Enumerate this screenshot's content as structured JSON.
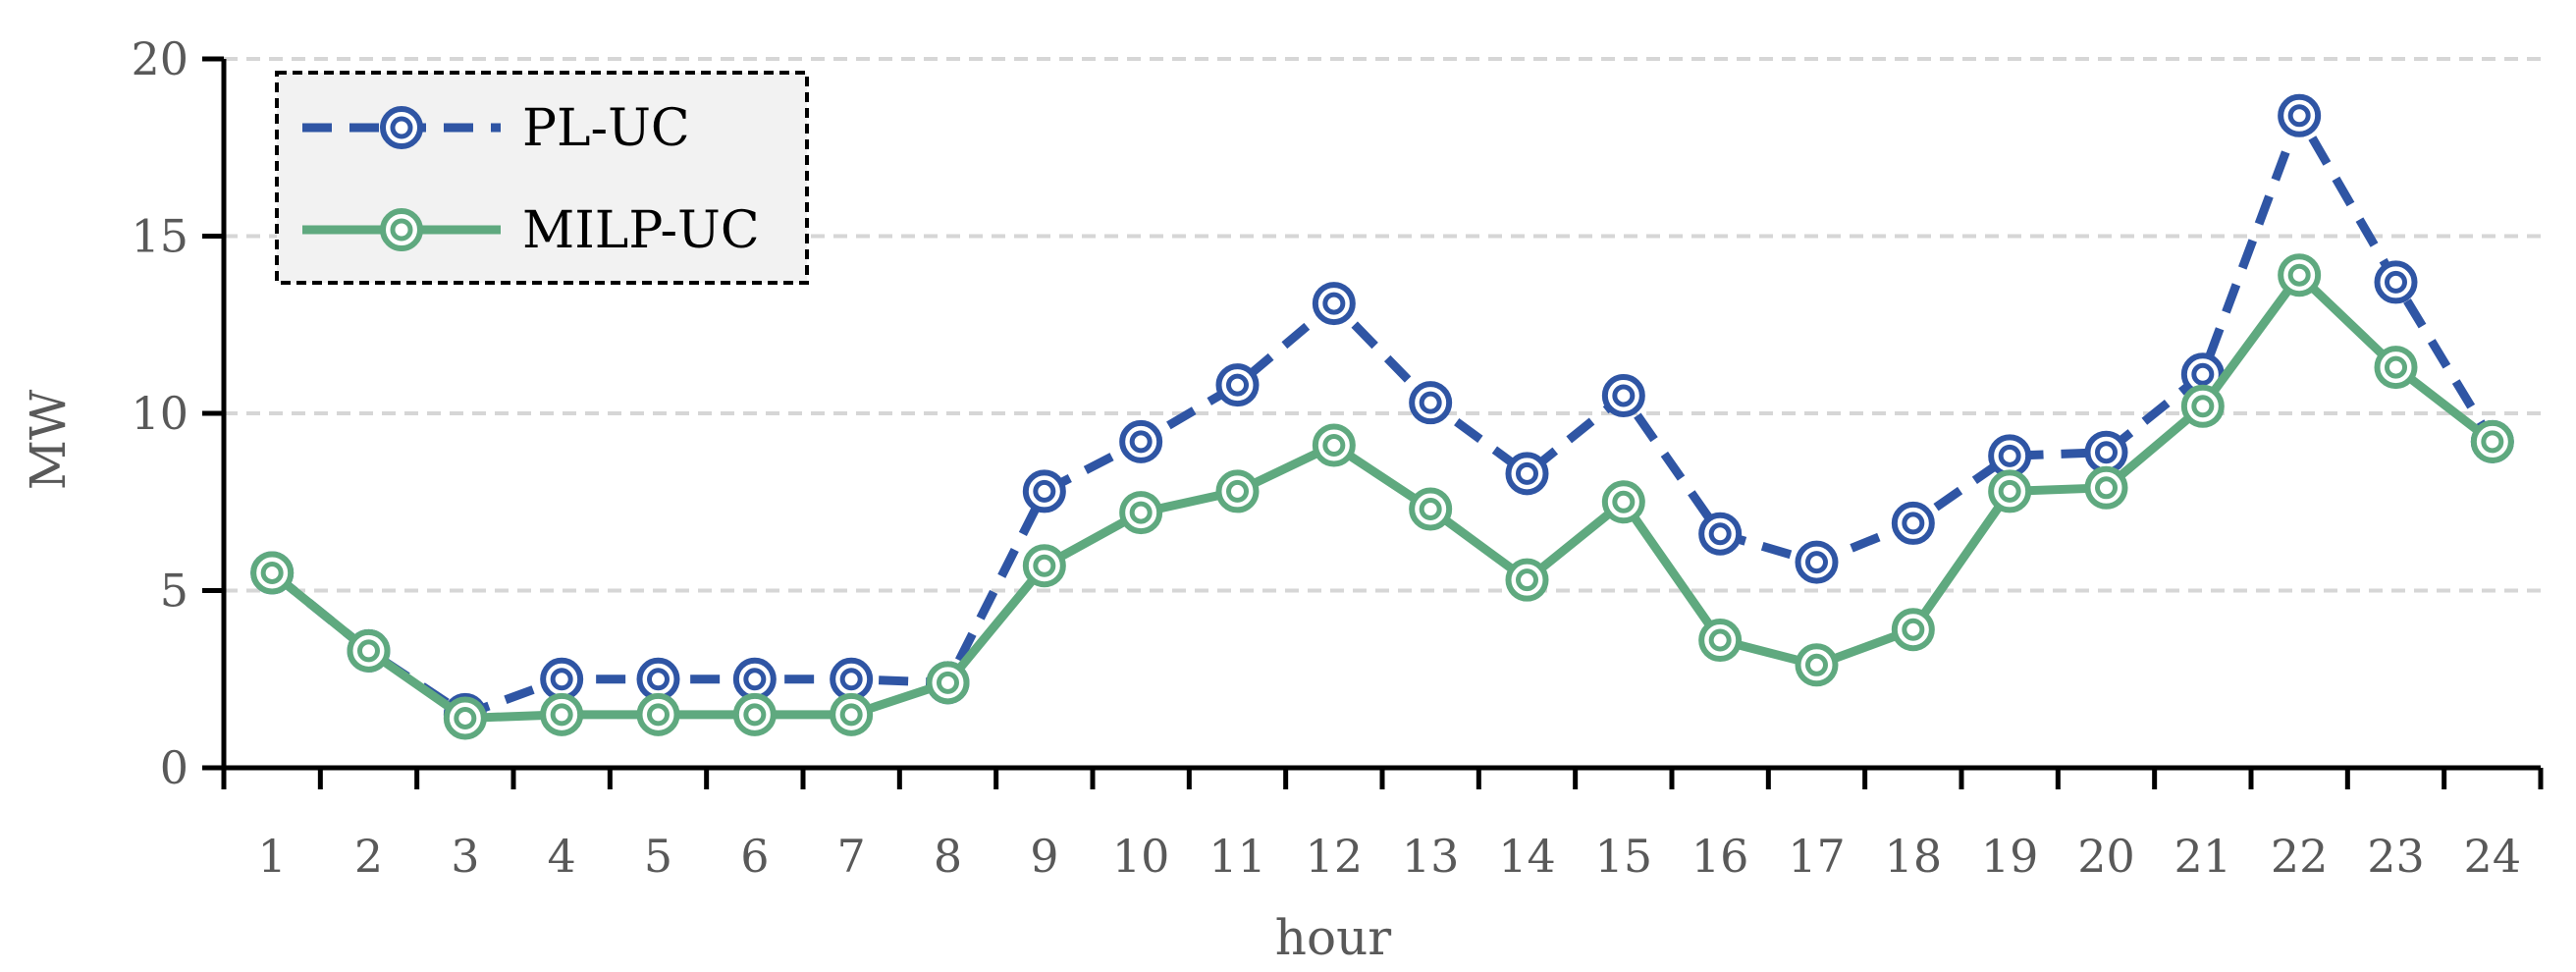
{
  "chart_data": {
    "type": "line",
    "title": "",
    "xlabel": "hour",
    "ylabel": "MW",
    "ylim": [
      0,
      20
    ],
    "yticks": [
      0,
      5,
      10,
      15,
      20
    ],
    "grid": "horizontal dashed",
    "legend_position": "top-left",
    "categories": [
      "1",
      "2",
      "3",
      "4",
      "5",
      "6",
      "7",
      "8",
      "9",
      "10",
      "11",
      "12",
      "13",
      "14",
      "15",
      "16",
      "17",
      "18",
      "19",
      "20",
      "21",
      "22",
      "23",
      "24"
    ],
    "series": [
      {
        "name": "PL-UC",
        "color": "#2f55a4",
        "style": "dashed",
        "marker": "double-circle",
        "values": [
          5.5,
          3.3,
          1.5,
          2.5,
          2.5,
          2.5,
          2.5,
          2.4,
          7.8,
          9.2,
          10.8,
          13.1,
          10.3,
          8.3,
          10.5,
          6.6,
          5.8,
          6.9,
          8.8,
          8.9,
          11.1,
          18.4,
          13.7,
          9.2
        ]
      },
      {
        "name": "MILP-UC",
        "color": "#5fa97f",
        "style": "solid",
        "marker": "double-circle",
        "values": [
          5.5,
          3.3,
          1.4,
          1.5,
          1.5,
          1.5,
          1.5,
          2.4,
          5.7,
          7.2,
          7.8,
          9.1,
          7.3,
          5.3,
          7.5,
          3.6,
          2.9,
          3.9,
          7.8,
          7.9,
          10.2,
          13.9,
          11.3,
          9.2
        ]
      }
    ]
  }
}
